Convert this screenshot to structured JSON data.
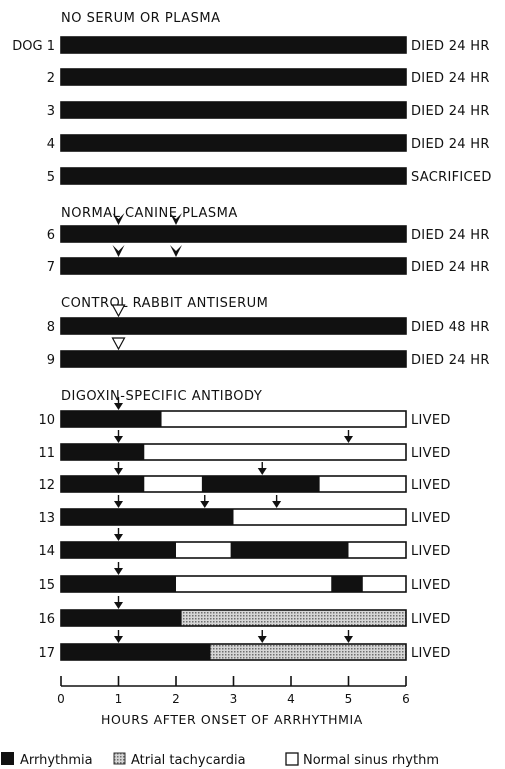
{
  "colors": {
    "arrhythmia": "#111111",
    "atrial_tachycardia": "#b8b8b8",
    "normal_sinus_rhythm": "#ffffff"
  },
  "chart_data": {
    "type": "timeline",
    "xlabel": "HOURS AFTER ONSET OF ARRHYTHMIA",
    "xlim": [
      0,
      6
    ],
    "xticks": [
      "0",
      "1",
      "2",
      "3",
      "4",
      "5",
      "6"
    ],
    "legend": [
      {
        "key": "arrhythmia",
        "label": "Arrhythmia"
      },
      {
        "key": "atrial_tachycardia",
        "label": "Atrial tachycardia"
      },
      {
        "key": "normal_sinus_rhythm",
        "label": "Normal sinus rhythm"
      }
    ],
    "groups": [
      {
        "title": "NO SERUM OR PLASMA",
        "dogs": [
          {
            "label": "DOG 1",
            "outcome": "DIED 24 HR",
            "segments": [
              {
                "from": 0,
                "to": 6,
                "state": "arrhythmia"
              }
            ],
            "arrows": []
          },
          {
            "label": "2",
            "outcome": "DIED 24 HR",
            "segments": [
              {
                "from": 0,
                "to": 6,
                "state": "arrhythmia"
              }
            ],
            "arrows": []
          },
          {
            "label": "3",
            "outcome": "DIED 24 HR",
            "segments": [
              {
                "from": 0,
                "to": 6,
                "state": "arrhythmia"
              }
            ],
            "arrows": []
          },
          {
            "label": "4",
            "outcome": "DIED 24 HR",
            "segments": [
              {
                "from": 0,
                "to": 6,
                "state": "arrhythmia"
              }
            ],
            "arrows": []
          },
          {
            "label": "5",
            "outcome": "SACRIFICED",
            "segments": [
              {
                "from": 0,
                "to": 6,
                "state": "arrhythmia"
              }
            ],
            "arrows": []
          }
        ]
      },
      {
        "title": "NORMAL CANINE PLASMA",
        "dogs": [
          {
            "label": "6",
            "outcome": "DIED 24 HR",
            "segments": [
              {
                "from": 0,
                "to": 6,
                "state": "arrhythmia"
              }
            ],
            "arrows": [
              {
                "at": 1,
                "style": "filled"
              },
              {
                "at": 2,
                "style": "filled"
              }
            ]
          },
          {
            "label": "7",
            "outcome": "DIED 24 HR",
            "segments": [
              {
                "from": 0,
                "to": 6,
                "state": "arrhythmia"
              }
            ],
            "arrows": [
              {
                "at": 1,
                "style": "filled"
              },
              {
                "at": 2,
                "style": "filled"
              }
            ]
          }
        ]
      },
      {
        "title": "CONTROL RABBIT ANTISERUM",
        "dogs": [
          {
            "label": "8",
            "outcome": "DIED 48 HR",
            "segments": [
              {
                "from": 0,
                "to": 6,
                "state": "arrhythmia"
              }
            ],
            "arrows": [
              {
                "at": 1,
                "style": "open"
              }
            ]
          },
          {
            "label": "9",
            "outcome": "DIED 24 HR",
            "segments": [
              {
                "from": 0,
                "to": 6,
                "state": "arrhythmia"
              }
            ],
            "arrows": [
              {
                "at": 1,
                "style": "open"
              }
            ]
          }
        ]
      },
      {
        "title": "DIGOXIN-SPECIFIC ANTIBODY",
        "dogs": [
          {
            "label": "10",
            "outcome": "LIVED",
            "segments": [
              {
                "from": 0,
                "to": 1.75,
                "state": "arrhythmia"
              },
              {
                "from": 1.75,
                "to": 6,
                "state": "normal_sinus_rhythm"
              }
            ],
            "arrows": [
              {
                "at": 1,
                "style": "small"
              }
            ]
          },
          {
            "label": "11",
            "outcome": "LIVED",
            "segments": [
              {
                "from": 0,
                "to": 1.45,
                "state": "arrhythmia"
              },
              {
                "from": 1.45,
                "to": 6,
                "state": "normal_sinus_rhythm"
              }
            ],
            "arrows": [
              {
                "at": 1,
                "style": "small"
              },
              {
                "at": 5,
                "style": "small"
              }
            ]
          },
          {
            "label": "12",
            "outcome": "LIVED",
            "segments": [
              {
                "from": 0,
                "to": 1.45,
                "state": "arrhythmia"
              },
              {
                "from": 1.45,
                "to": 2.45,
                "state": "normal_sinus_rhythm"
              },
              {
                "from": 2.45,
                "to": 4.5,
                "state": "arrhythmia"
              },
              {
                "from": 4.5,
                "to": 6,
                "state": "normal_sinus_rhythm"
              }
            ],
            "arrows": [
              {
                "at": 1,
                "style": "small"
              },
              {
                "at": 3.5,
                "style": "small"
              }
            ]
          },
          {
            "label": "13",
            "outcome": "LIVED",
            "segments": [
              {
                "from": 0,
                "to": 3,
                "state": "arrhythmia"
              },
              {
                "from": 3,
                "to": 6,
                "state": "normal_sinus_rhythm"
              }
            ],
            "arrows": [
              {
                "at": 1,
                "style": "small"
              },
              {
                "at": 2.5,
                "style": "small"
              },
              {
                "at": 3.75,
                "style": "small"
              }
            ]
          },
          {
            "label": "14",
            "outcome": "LIVED",
            "segments": [
              {
                "from": 0,
                "to": 2,
                "state": "arrhythmia"
              },
              {
                "from": 2,
                "to": 2.95,
                "state": "normal_sinus_rhythm"
              },
              {
                "from": 2.95,
                "to": 5,
                "state": "arrhythmia"
              },
              {
                "from": 5,
                "to": 6,
                "state": "normal_sinus_rhythm"
              }
            ],
            "arrows": [
              {
                "at": 1,
                "style": "small"
              }
            ]
          },
          {
            "label": "15",
            "outcome": "LIVED",
            "segments": [
              {
                "from": 0,
                "to": 2,
                "state": "arrhythmia"
              },
              {
                "from": 2,
                "to": 4.7,
                "state": "normal_sinus_rhythm"
              },
              {
                "from": 4.7,
                "to": 5.25,
                "state": "arrhythmia"
              },
              {
                "from": 5.25,
                "to": 6,
                "state": "normal_sinus_rhythm"
              }
            ],
            "arrows": [
              {
                "at": 1,
                "style": "small"
              }
            ]
          },
          {
            "label": "16",
            "outcome": "LIVED",
            "segments": [
              {
                "from": 0,
                "to": 2.1,
                "state": "arrhythmia"
              },
              {
                "from": 2.1,
                "to": 6,
                "state": "atrial_tachycardia"
              }
            ],
            "arrows": [
              {
                "at": 1,
                "style": "small"
              }
            ]
          },
          {
            "label": "17",
            "outcome": "LIVED",
            "segments": [
              {
                "from": 0,
                "to": 2.6,
                "state": "arrhythmia"
              },
              {
                "from": 2.6,
                "to": 6,
                "state": "atrial_tachycardia"
              }
            ],
            "arrows": [
              {
                "at": 1,
                "style": "small"
              },
              {
                "at": 3.5,
                "style": "small"
              },
              {
                "at": 5,
                "style": "small"
              }
            ]
          }
        ]
      }
    ]
  }
}
